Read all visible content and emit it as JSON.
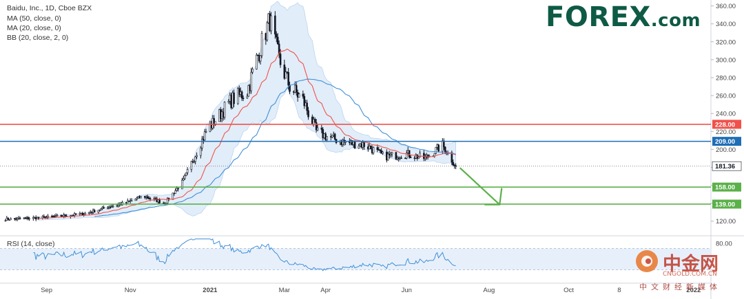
{
  "header": {
    "symbol_line": "Baidu, Inc., 1D, Cboe BZX",
    "ma50_label": "MA (50, close, 0)",
    "ma20_label": "MA (20, close, 0)",
    "bb_label": "BB (20, close, 2, 0)",
    "rsi_label": "RSI (14, close)"
  },
  "branding": {
    "forex_logo": "FOREX",
    "forex_suffix": ".com",
    "watermark": "中金网",
    "watermark_url": "CNGOLD.COM.CN",
    "watermark_cn": "中文财经新媒体"
  },
  "colors": {
    "candle": "#131722",
    "ma20": "#f0524b",
    "ma50": "#3f8fd8",
    "bb_fill": "#dcebf8",
    "rsi_line": "#3f8fd8",
    "resistance": "#f0524b",
    "pivot": "#1f6eb5",
    "support": "#5bb04a",
    "arrow": "#5bb04a"
  },
  "chart_data": [
    {
      "type": "candlestick",
      "title": "Baidu, Inc., 1D, Cboe BZX",
      "indicators": [
        "MA (50, close, 0)",
        "MA (20, close, 0)",
        "BB (20, close, 2, 0)"
      ],
      "ylim": [
        106,
        362
      ],
      "y_ticks": [
        120,
        140,
        160,
        180,
        200,
        220,
        240,
        260,
        280,
        300,
        320,
        340,
        360
      ],
      "y_tick_labels": [
        "120.00",
        "140.00",
        "160.00",
        "180.00",
        "200.00",
        "220.00",
        "240.00",
        "260.00",
        "280.00",
        "300.00",
        "320.00",
        "340.00",
        "360.00"
      ],
      "x_tick_labels": [
        "Sep",
        "Nov",
        "2021",
        "Mar",
        "Apr",
        "Jun",
        "Aug",
        "Oct",
        "8",
        "2022"
      ],
      "price_path": [
        {
          "date": "2020-08-01",
          "close": 122
        },
        {
          "date": "2020-09-01",
          "close": 124
        },
        {
          "date": "2020-10-01",
          "close": 128
        },
        {
          "date": "2020-10-20",
          "close": 136
        },
        {
          "date": "2020-11-01",
          "close": 140
        },
        {
          "date": "2020-11-15",
          "close": 148
        },
        {
          "date": "2020-12-01",
          "close": 140
        },
        {
          "date": "2020-12-15",
          "close": 165
        },
        {
          "date": "2021-01-01",
          "close": 220
        },
        {
          "date": "2021-01-20",
          "close": 255
        },
        {
          "date": "2021-02-01",
          "close": 265
        },
        {
          "date": "2021-02-10",
          "close": 310
        },
        {
          "date": "2021-02-18",
          "close": 345
        },
        {
          "date": "2021-02-25",
          "close": 300
        },
        {
          "date": "2021-03-05",
          "close": 270
        },
        {
          "date": "2021-03-15",
          "close": 255
        },
        {
          "date": "2021-03-25",
          "close": 220
        },
        {
          "date": "2021-04-01",
          "close": 215
        },
        {
          "date": "2021-04-15",
          "close": 208
        },
        {
          "date": "2021-05-01",
          "close": 205
        },
        {
          "date": "2021-05-15",
          "close": 192
        },
        {
          "date": "2021-06-01",
          "close": 195
        },
        {
          "date": "2021-06-15",
          "close": 190
        },
        {
          "date": "2021-06-28",
          "close": 205
        },
        {
          "date": "2021-07-08",
          "close": 181.36
        }
      ],
      "last_price": 181.36,
      "horizontal_lines": [
        {
          "name": "resistance",
          "value": 228.0,
          "label": "228.00"
        },
        {
          "name": "pivot",
          "value": 209.0,
          "label": "209.00"
        },
        {
          "name": "support-1",
          "value": 158.0,
          "label": "158.00"
        },
        {
          "name": "support-2",
          "value": 139.0,
          "label": "139.00"
        }
      ],
      "projection_arrow": {
        "from": {
          "date": "2021-07-08",
          "value": 181
        },
        "to": {
          "date": "2021-08-10",
          "value": 140
        }
      },
      "last_price_label": "181.36"
    },
    {
      "type": "line",
      "title": "RSI (14, close)",
      "ylim": [
        10,
        90
      ],
      "y_ticks": [
        80
      ],
      "y_tick_labels": [
        "80.00"
      ],
      "band": [
        30,
        70
      ]
    }
  ]
}
